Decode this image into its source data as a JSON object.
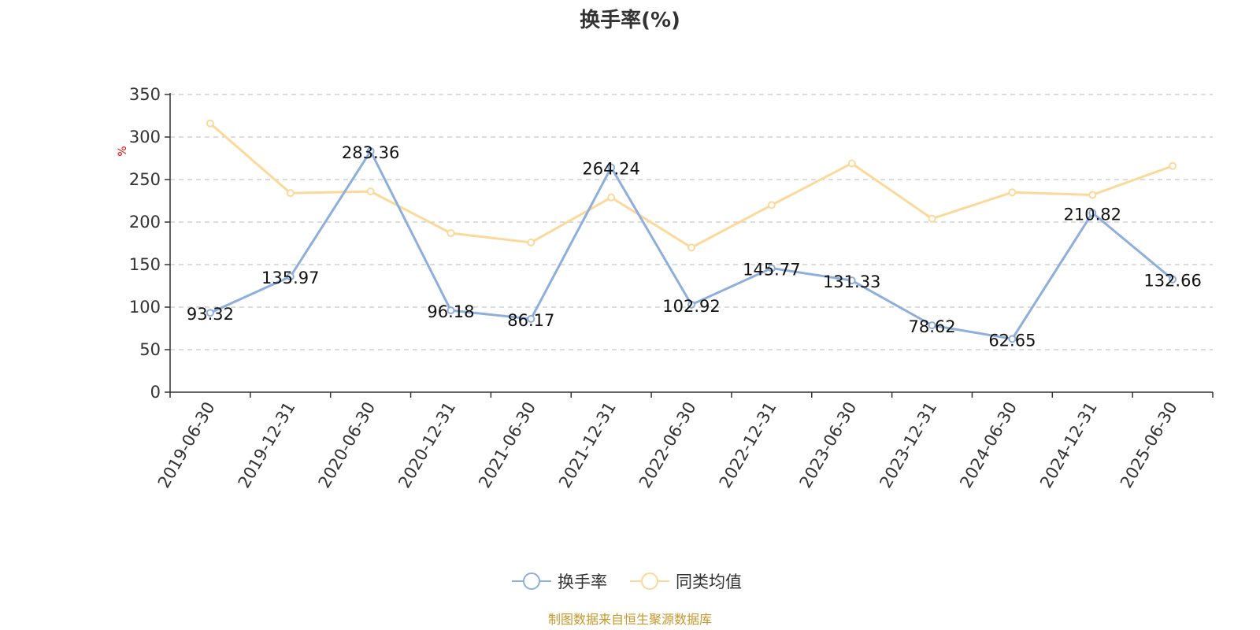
{
  "chart_data": {
    "type": "line",
    "title": "换手率(%)",
    "ylabel": "%",
    "ylim": [
      0,
      350
    ],
    "yticks": [
      0,
      50,
      100,
      150,
      200,
      250,
      300,
      350
    ],
    "categories": [
      "2019-06-30",
      "2019-12-31",
      "2020-06-30",
      "2020-12-31",
      "2021-06-30",
      "2021-12-31",
      "2022-06-30",
      "2022-12-31",
      "2023-06-30",
      "2023-12-31",
      "2024-06-30",
      "2024-12-31",
      "2025-06-30"
    ],
    "series": [
      {
        "name": "换手率",
        "color": "#8eaedb",
        "values": [
          93.32,
          135.97,
          283.36,
          96.18,
          86.17,
          264.24,
          102.92,
          145.77,
          131.33,
          78.62,
          62.65,
          210.82,
          132.66
        ],
        "labels": [
          "93.32",
          "135.97",
          "283.36",
          "96.18",
          "86.17",
          "264.24",
          "102.92",
          "145.77",
          "131.33",
          "78.62",
          "62.65",
          "210.82",
          "132.66"
        ]
      },
      {
        "name": "同类均值",
        "color": "#fbd99a",
        "values": [
          316,
          234,
          236,
          187,
          176,
          229,
          170,
          220,
          269,
          204,
          235,
          232,
          266
        ]
      }
    ],
    "grid": true,
    "legend_position": "bottom-center"
  },
  "footer": {
    "source": "制图数据来自恒生聚源数据库"
  }
}
